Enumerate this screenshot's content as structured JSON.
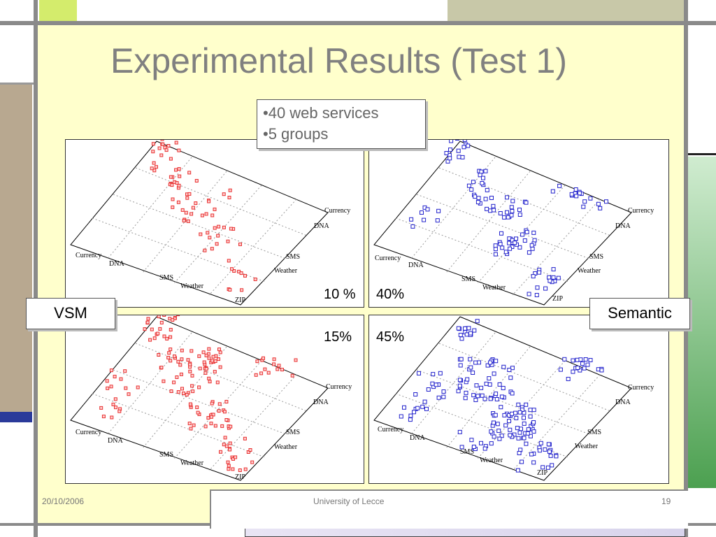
{
  "slide": {
    "title": "Experimental Results (Test 1)",
    "bullets": [
      "40 web services",
      "5 groups"
    ],
    "vsm_label": "VSM",
    "semantic_label": "Semantic",
    "footer_date": "20/10/2006",
    "footer_center": "University of Lecce",
    "footer_page": "19"
  },
  "plots": [
    {
      "percentage": "10 %",
      "axis_labels": [
        "Currency",
        "DNA",
        "SMS",
        "Weather",
        "ZIP"
      ],
      "marker_color": "#e83030"
    },
    {
      "percentage": "40%",
      "axis_labels": [
        "Currency",
        "DNA",
        "SMS",
        "Weather",
        "ZIP"
      ],
      "marker_color": "#2222cc"
    },
    {
      "percentage": "15%",
      "axis_labels": [
        "Currency",
        "DNA",
        "SMS",
        "Weather",
        "ZIP"
      ],
      "marker_color": "#e83030"
    },
    {
      "percentage": "45%",
      "axis_labels": [
        "Currency",
        "DNA",
        "SMS",
        "Weather",
        "ZIP"
      ],
      "marker_color": "#2222cc"
    }
  ],
  "colors": {
    "slide_background": "#ffffcc",
    "lime_accent": "#d4ec6c",
    "olive_accent": "#c8c8a8",
    "tan_accent": "#b8a890",
    "green_accent": "#4ca050",
    "navy_accent": "#2a3a9a"
  }
}
